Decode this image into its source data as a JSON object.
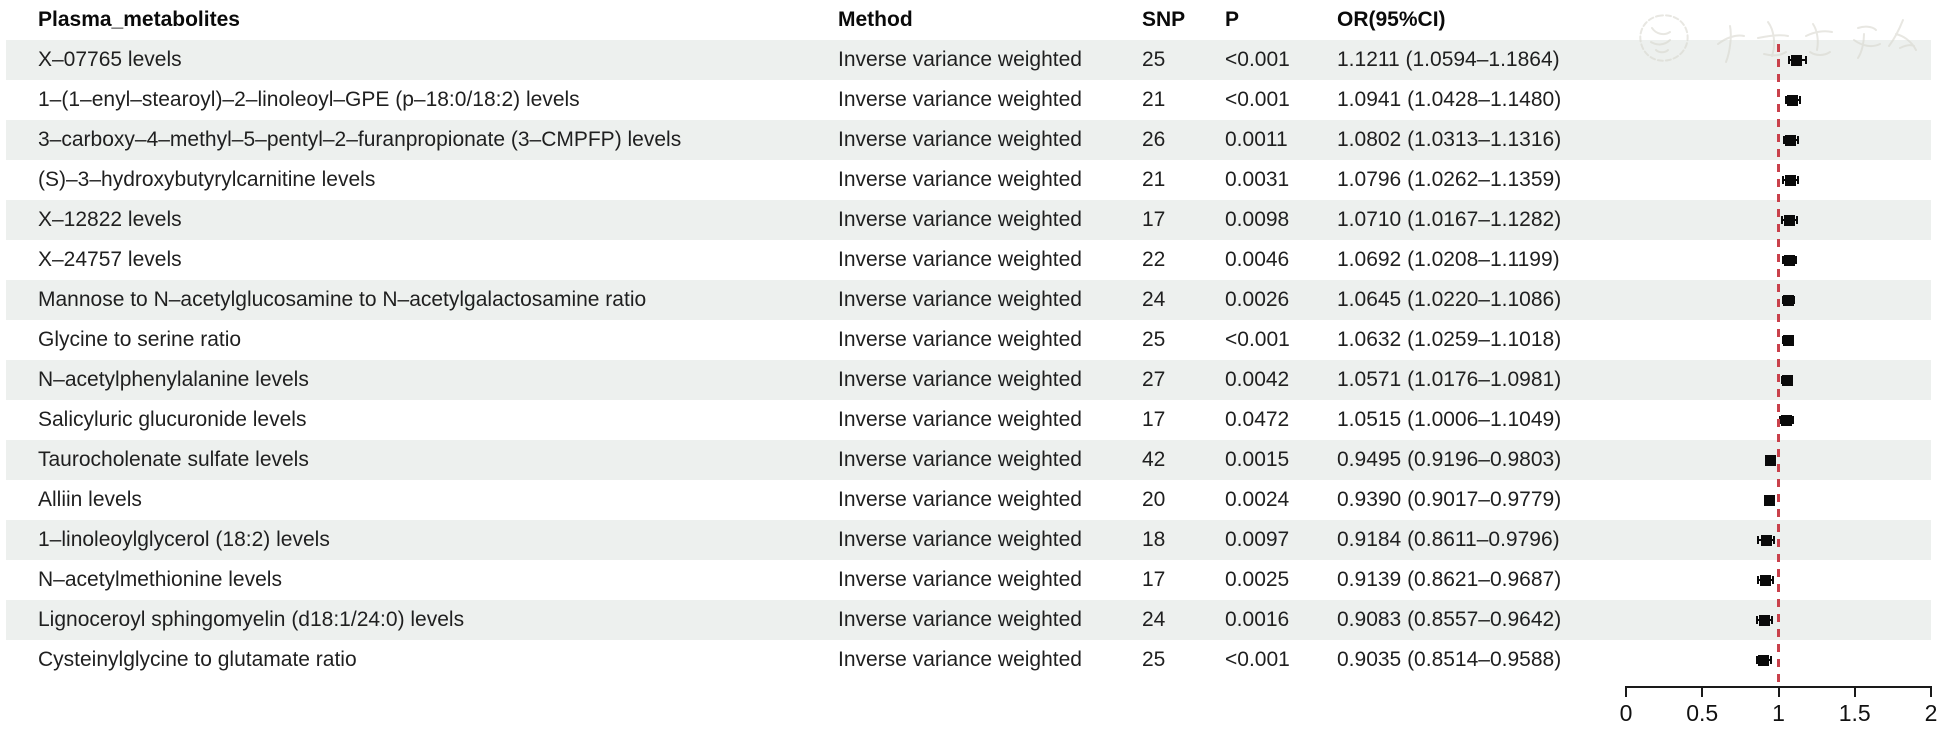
{
  "table": {
    "columns": {
      "metabolite": "Plasma_metabolites",
      "method": "Method",
      "snp": "SNP",
      "p": "P",
      "or_ci": "OR(95%CI)"
    }
  },
  "chart_data": {
    "type": "forest",
    "title": "",
    "x_axis": {
      "min": 0,
      "max": 2,
      "ref_line": 1,
      "ticks": [
        {
          "label": "0",
          "value": 0
        },
        {
          "label": "0.5",
          "value": 0.5
        },
        {
          "label": "1",
          "value": 1
        },
        {
          "label": "1.5",
          "value": 1.5
        },
        {
          "label": "2",
          "value": 2
        }
      ]
    },
    "rows": [
      {
        "metabolite": "X–07765 levels",
        "method": "Inverse variance weighted",
        "snp": "25",
        "p": "<0.001",
        "or_ci": "1.1211 (1.0594–1.1864)",
        "or": 1.1211,
        "lo": 1.0594,
        "hi": 1.1864
      },
      {
        "metabolite": "1–(1–enyl–stearoyl)–2–linoleoyl–GPE (p–18:0/18:2) levels",
        "method": "Inverse variance weighted",
        "snp": "21",
        "p": "<0.001",
        "or_ci": "1.0941 (1.0428–1.1480)",
        "or": 1.0941,
        "lo": 1.0428,
        "hi": 1.148
      },
      {
        "metabolite": "3–carboxy–4–methyl–5–pentyl–2–furanpropionate (3–CMPFP) levels",
        "method": "Inverse variance weighted",
        "snp": "26",
        "p": "0.0011",
        "or_ci": "1.0802 (1.0313–1.1316)",
        "or": 1.0802,
        "lo": 1.0313,
        "hi": 1.1316
      },
      {
        "metabolite": "(S)–3–hydroxybutyrylcarnitine levels",
        "method": "Inverse variance weighted",
        "snp": "21",
        "p": "0.0031",
        "or_ci": "1.0796 (1.0262–1.1359)",
        "or": 1.0796,
        "lo": 1.0262,
        "hi": 1.1359
      },
      {
        "metabolite": "X–12822 levels",
        "method": "Inverse variance weighted",
        "snp": "17",
        "p": "0.0098",
        "or_ci": "1.0710 (1.0167–1.1282)",
        "or": 1.071,
        "lo": 1.0167,
        "hi": 1.1282
      },
      {
        "metabolite": "X–24757 levels",
        "method": "Inverse variance weighted",
        "snp": "22",
        "p": "0.0046",
        "or_ci": "1.0692 (1.0208–1.1199)",
        "or": 1.0692,
        "lo": 1.0208,
        "hi": 1.1199
      },
      {
        "metabolite": "Mannose to N–acetylglucosamine to N–acetylgalactosamine ratio",
        "method": "Inverse variance weighted",
        "snp": "24",
        "p": "0.0026",
        "or_ci": "1.0645 (1.0220–1.1086)",
        "or": 1.0645,
        "lo": 1.022,
        "hi": 1.1086
      },
      {
        "metabolite": "Glycine to serine ratio",
        "method": "Inverse variance weighted",
        "snp": "25",
        "p": "<0.001",
        "or_ci": "1.0632 (1.0259–1.1018)",
        "or": 1.0632,
        "lo": 1.0259,
        "hi": 1.1018
      },
      {
        "metabolite": "N–acetylphenylalanine levels",
        "method": "Inverse variance weighted",
        "snp": "27",
        "p": "0.0042",
        "or_ci": "1.0571 (1.0176–1.0981)",
        "or": 1.0571,
        "lo": 1.0176,
        "hi": 1.0981
      },
      {
        "metabolite": "Salicyluric glucuronide levels",
        "method": "Inverse variance weighted",
        "snp": "17",
        "p": "0.0472",
        "or_ci": "1.0515 (1.0006–1.1049)",
        "or": 1.0515,
        "lo": 1.0006,
        "hi": 1.1049
      },
      {
        "metabolite": "Taurocholenate sulfate levels",
        "method": "Inverse variance weighted",
        "snp": "42",
        "p": "0.0015",
        "or_ci": "0.9495 (0.9196–0.9803)",
        "or": 0.9495,
        "lo": 0.9196,
        "hi": 0.9803
      },
      {
        "metabolite": "Alliin levels",
        "method": "Inverse variance weighted",
        "snp": "20",
        "p": "0.0024",
        "or_ci": "0.9390 (0.9017–0.9779)",
        "or": 0.939,
        "lo": 0.9017,
        "hi": 0.9779
      },
      {
        "metabolite": "1–linoleoylglycerol (18:2) levels",
        "method": "Inverse variance weighted",
        "snp": "18",
        "p": "0.0097",
        "or_ci": "0.9184 (0.8611–0.9796)",
        "or": 0.9184,
        "lo": 0.8611,
        "hi": 0.9796
      },
      {
        "metabolite": "N–acetylmethionine levels",
        "method": "Inverse variance weighted",
        "snp": "17",
        "p": "0.0025",
        "or_ci": "0.9139 (0.8621–0.9687)",
        "or": 0.9139,
        "lo": 0.8621,
        "hi": 0.9687
      },
      {
        "metabolite": "Lignoceroyl sphingomyelin (d18:1/24:0) levels",
        "method": "Inverse variance weighted",
        "snp": "24",
        "p": "0.0016",
        "or_ci": "0.9083 (0.8557–0.9642)",
        "or": 0.9083,
        "lo": 0.8557,
        "hi": 0.9642
      },
      {
        "metabolite": "Cysteinylglycine to glutamate ratio",
        "method": "Inverse variance weighted",
        "snp": "25",
        "p": "<0.001",
        "or_ci": "0.9035 (0.8514–0.9588)",
        "or": 0.9035,
        "lo": 0.8514,
        "hi": 0.9588
      }
    ],
    "layout": {
      "zebra_stripes": true,
      "legend": "none",
      "grid": false
    }
  },
  "colors": {
    "stripe": "#edf0ee",
    "ref_line": "#c9414b",
    "marker": "#0a0a0a",
    "text": "#1f1f1f"
  },
  "icons": {
    "watermark": "chinese-seal-watermark"
  }
}
